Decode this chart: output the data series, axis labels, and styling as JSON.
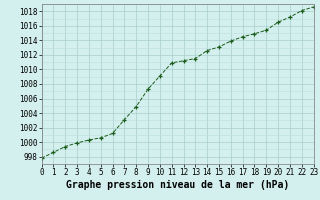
{
  "x": [
    0,
    1,
    2,
    3,
    4,
    5,
    6,
    7,
    8,
    9,
    10,
    11,
    12,
    13,
    14,
    15,
    16,
    17,
    18,
    19,
    20,
    21,
    22,
    23
  ],
  "y": [
    997.8,
    998.6,
    999.4,
    999.9,
    1000.3,
    1000.6,
    1001.2,
    1003.1,
    1004.9,
    1007.3,
    1009.1,
    1010.9,
    1011.2,
    1011.5,
    1012.6,
    1013.1,
    1013.9,
    1014.5,
    1014.9,
    1015.4,
    1016.5,
    1017.2,
    1018.1,
    1018.6
  ],
  "line_color": "#1a5c1a",
  "marker": "+",
  "background_color": "#d4f0ee",
  "grid_major_color": "#a8cece",
  "grid_minor_color": "#c0dede",
  "title": "Graphe pression niveau de la mer (hPa)",
  "ylim": [
    997,
    1019
  ],
  "xlim": [
    0,
    23
  ],
  "yticks": [
    998,
    1000,
    1002,
    1004,
    1006,
    1008,
    1010,
    1012,
    1014,
    1016,
    1018
  ],
  "xticks": [
    0,
    1,
    2,
    3,
    4,
    5,
    6,
    7,
    8,
    9,
    10,
    11,
    12,
    13,
    14,
    15,
    16,
    17,
    18,
    19,
    20,
    21,
    22,
    23
  ],
  "tick_fontsize": 5.5,
  "title_fontsize": 7,
  "title_bold": true,
  "linewidth": 0.7,
  "markersize": 3.5,
  "markeredgewidth": 0.9
}
